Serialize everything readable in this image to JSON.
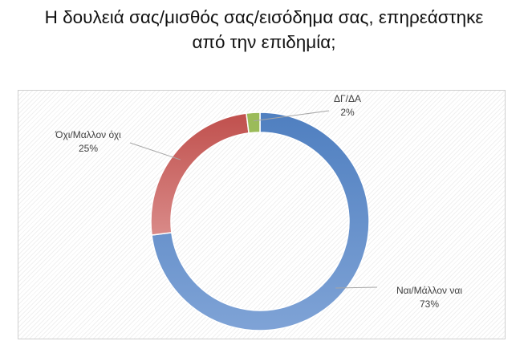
{
  "title_lines": [
    "Η δουλειά σας/μισθός σας/εισόδημα σας, επηρεάστηκε",
    "από την επιδημία;"
  ],
  "chart_data": {
    "type": "pie",
    "donut": true,
    "title": "Η δουλειά σας/μισθός σας/εισόδημα σας, επηρεάστηκε από την επιδημία;",
    "slices": [
      {
        "label": "Ναι/Μάλλον ναι",
        "value": 73,
        "display": "73%",
        "color": "#7fa3d6",
        "color_dark": "#4f7fc0"
      },
      {
        "label": "Όχι/Μαλλον όχι",
        "value": 25,
        "display": "25%",
        "color": "#d98a88",
        "color_dark": "#c0504d"
      },
      {
        "label": "ΔΓ/ΔΑ",
        "value": 2,
        "display": "2%",
        "color": "#9bbb59",
        "color_dark": "#9bbb59"
      }
    ],
    "legend": "none",
    "data_labels": "outside with leader lines"
  }
}
